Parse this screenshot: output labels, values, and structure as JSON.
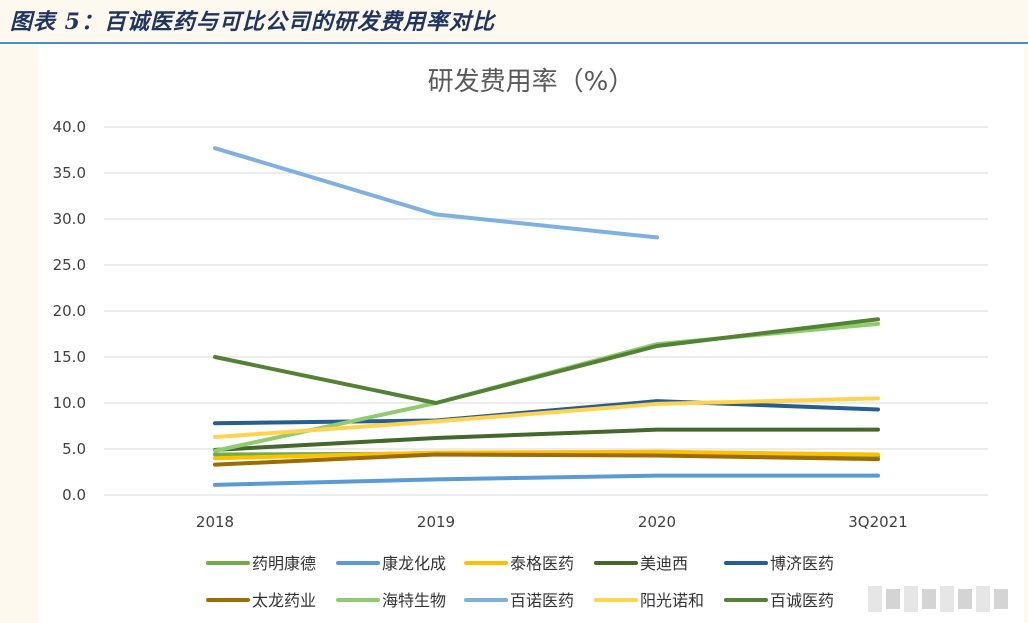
{
  "caption": "图表 5：百诚医药与可比公司的研发费用率对比",
  "chart_data": {
    "type": "line",
    "title": "研发费用率（%）",
    "xlabel": "",
    "ylabel": "",
    "categories": [
      "2018",
      "2019",
      "2020",
      "3Q2021"
    ],
    "ylim": [
      0,
      40
    ],
    "yticks": [
      "0.0",
      "5.0",
      "10.0",
      "15.0",
      "20.0",
      "25.0",
      "30.0",
      "35.0",
      "40.0"
    ],
    "grid": true,
    "legend_position": "bottom",
    "series": [
      {
        "name": "药明康德",
        "color": "#70ad47",
        "values": [
          4.4,
          4.5,
          4.3,
          4.2
        ]
      },
      {
        "name": "康龙化成",
        "color": "#5b9bd5",
        "values": [
          1.1,
          1.7,
          2.1,
          2.1
        ]
      },
      {
        "name": "泰格医药",
        "color": "#ffc000",
        "values": [
          4.0,
          4.6,
          4.7,
          4.4
        ]
      },
      {
        "name": "美迪西",
        "color": "#43682b",
        "values": [
          4.9,
          6.2,
          7.1,
          7.1
        ]
      },
      {
        "name": "博济医药",
        "color": "#255e91",
        "values": [
          7.8,
          8.1,
          10.2,
          9.3
        ]
      },
      {
        "name": "太龙药业",
        "color": "#9e6b00",
        "values": [
          3.3,
          4.4,
          4.3,
          3.9
        ]
      },
      {
        "name": "海特生物",
        "color": "#8fcc6d",
        "values": [
          4.8,
          10.0,
          16.4,
          18.6
        ]
      },
      {
        "name": "百诺医药",
        "color": "#7eb0e0",
        "values": [
          37.7,
          30.5,
          28.0,
          null
        ]
      },
      {
        "name": "阳光诺和",
        "color": "#ffd34d",
        "values": [
          6.3,
          8.0,
          9.9,
          10.5
        ]
      },
      {
        "name": "百诚医药",
        "color": "#548235",
        "values": [
          15.0,
          10.0,
          16.2,
          19.1
        ]
      }
    ]
  }
}
